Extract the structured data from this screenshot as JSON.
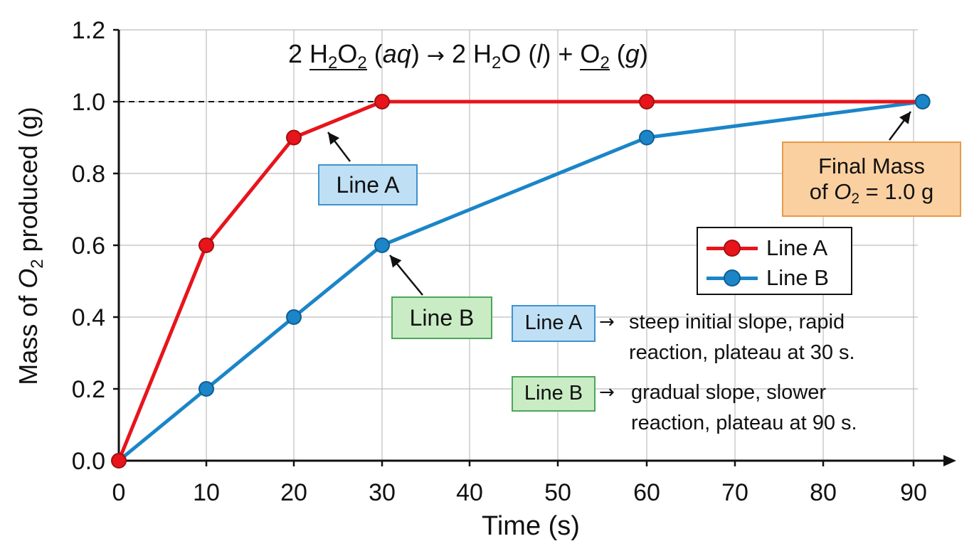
{
  "chart_data": {
    "type": "line",
    "xlabel": "Time (s)",
    "ylabel": "Mass of O2 produced (g)",
    "ylabel_parts": {
      "before": "Mass of ",
      "italic": "O",
      "sub": "2",
      "after": " produced (g)"
    },
    "x_ticks": [
      0,
      10,
      20,
      30,
      40,
      50,
      60,
      70,
      80,
      90
    ],
    "y_ticks": [
      "0.0",
      "0.2",
      "0.4",
      "0.6",
      "0.8",
      "1.0",
      "1.2"
    ],
    "ylim": [
      0,
      1.2
    ],
    "grid": true,
    "legend_position": "right",
    "series": [
      {
        "name": "Line A",
        "color": "#e8141b",
        "x": [
          0,
          10,
          20,
          30,
          60,
          91
        ],
        "y": [
          0.0,
          0.6,
          0.9,
          1.0,
          1.0,
          1.0
        ],
        "markers_x": [
          0,
          10,
          20,
          30,
          60
        ]
      },
      {
        "name": "Line B",
        "color": "#1b85c8",
        "x": [
          0,
          10,
          20,
          30,
          60,
          91
        ],
        "y": [
          0.0,
          0.2,
          0.4,
          0.6,
          0.9,
          1.0
        ],
        "markers_x": [
          10,
          20,
          30,
          60,
          91
        ]
      }
    ],
    "reference_line": {
      "y": 1.0,
      "style": "dashed"
    }
  },
  "equation": {
    "coef1": "2 ",
    "reactant": "H",
    "reactant_sub1": "2",
    "reactant_o": "O",
    "reactant_sub2": "2",
    "state1": "aq",
    "arrow": "→",
    "coef2": "2 H",
    "water_sub": "2",
    "water_o": "O",
    "state2": "l",
    "plus": "+",
    "product": "O",
    "product_sub": "2",
    "state3": "g"
  },
  "annotations": {
    "line_a_label": "Line A",
    "line_b_label": "Line B",
    "final_mass_line1": "Final Mass",
    "final_mass_of": "of ",
    "final_mass_o": "O",
    "final_mass_sub": "2",
    "final_mass_value": " = 1.0 g"
  },
  "legend": {
    "a": "Line A",
    "b": "Line B"
  },
  "notes": {
    "a_tag": "Line A",
    "a_arrow": "→",
    "a_line1": "steep initial slope, rapid",
    "a_line2": "reaction, plateau at 30 s.",
    "b_tag": "Line B",
    "b_arrow": "→",
    "b_line1": "gradual slope, slower",
    "b_line2": "reaction, plateau at 90 s."
  }
}
